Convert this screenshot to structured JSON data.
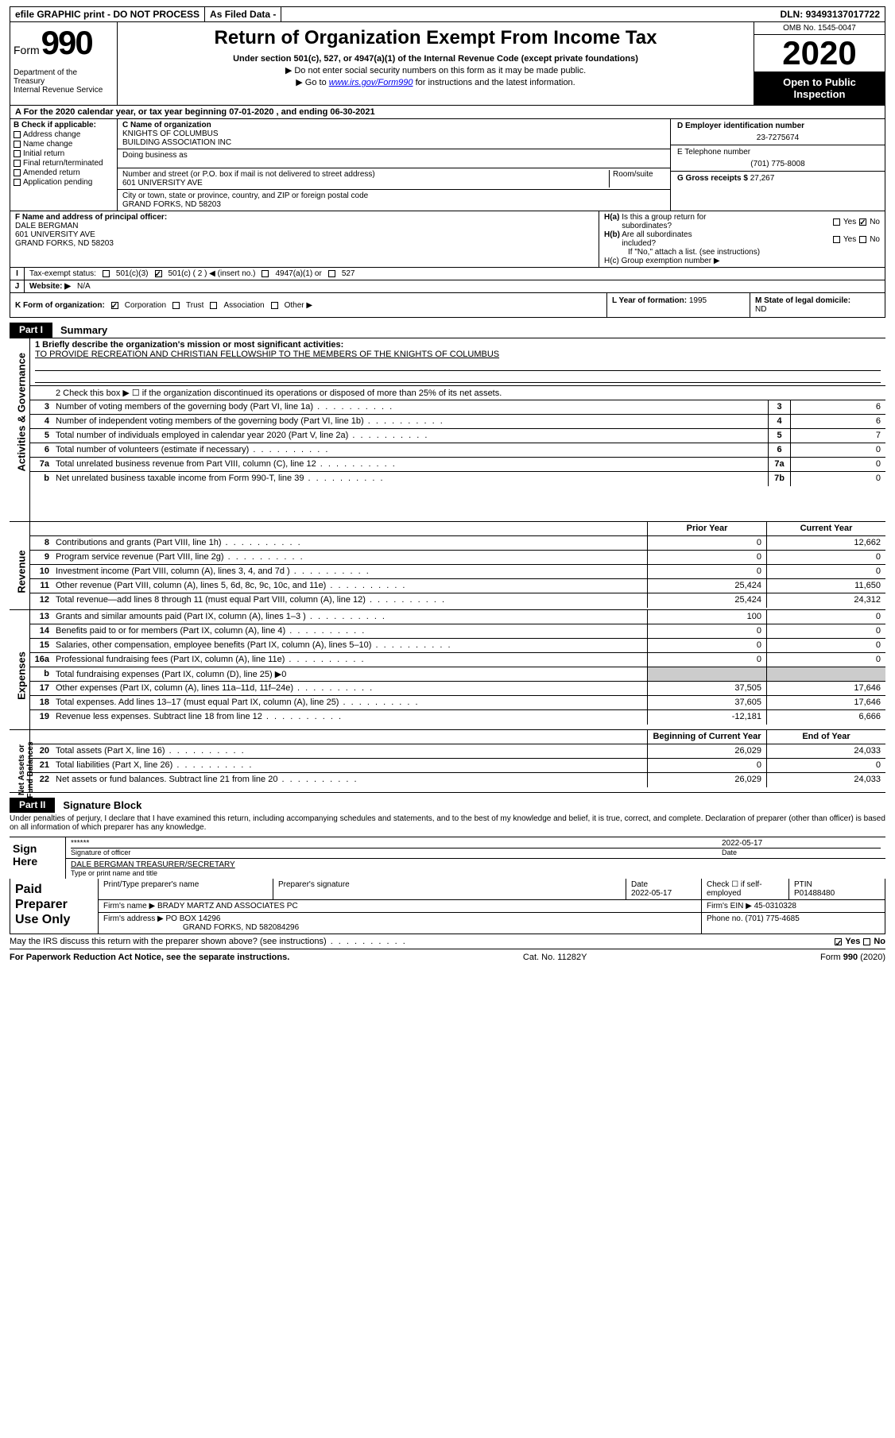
{
  "topbar": {
    "efile": "efile GRAPHIC print - DO NOT PROCESS",
    "asfiled": "As Filed Data -",
    "dln_label": "DLN:",
    "dln": "93493137017722"
  },
  "header": {
    "form_word": "Form",
    "form_no": "990",
    "dept": "Department of the Treasury\nInternal Revenue Service",
    "title": "Return of Organization Exempt From Income Tax",
    "sub1": "Under section 501(c), 527, or 4947(a)(1) of the Internal Revenue Code (except private foundations)",
    "sub2": "▶ Do not enter social security numbers on this form as it may be made public.",
    "sub3_pre": "▶ Go to ",
    "sub3_link": "www.irs.gov/Form990",
    "sub3_post": " for instructions and the latest information.",
    "omb": "OMB No. 1545-0047",
    "year": "2020",
    "open": "Open to Public Inspection"
  },
  "row_a": "A   For the 2020 calendar year, or tax year beginning 07-01-2020   , and ending 06-30-2021",
  "col_b": {
    "hd": "B Check if applicable:",
    "items": [
      "Address change",
      "Name change",
      "Initial return",
      "Final return/terminated",
      "Amended return",
      "Application pending"
    ]
  },
  "col_c": {
    "name_lab": "C Name of organization",
    "name1": "KNIGHTS OF COLUMBUS",
    "name2": "BUILDING ASSOCIATION INC",
    "dba_lab": "Doing business as",
    "addr_lab": "Number and street (or P.O. box if mail is not delivered to street address)",
    "room_lab": "Room/suite",
    "addr": "601 UNIVERSITY AVE",
    "city_lab": "City or town, state or province, country, and ZIP or foreign postal code",
    "city": "GRAND FORKS, ND  58203"
  },
  "col_de": {
    "d_lab": "D Employer identification number",
    "d_val": "23-7275674",
    "e_lab": "E Telephone number",
    "e_val": "(701) 775-8008",
    "g_lab": "G Gross receipts $",
    "g_val": "27,267"
  },
  "f": {
    "lab": "F  Name and address of principal officer:",
    "l1": "DALE BERGMAN",
    "l2": "601 UNIVERSITY AVE",
    "l3": "GRAND FORKS, ND  58203"
  },
  "h": {
    "ha": "H(a)  Is this a group return for subordinates?",
    "hb": "H(b)  Are all subordinates included?",
    "hb_note": "If \"No,\" attach a list. (see instructions)",
    "hc": "H(c)  Group exemption number ▶",
    "yes": "Yes",
    "no": "No"
  },
  "i": {
    "lab": "Tax-exempt status:",
    "o1": "501(c)(3)",
    "o2": "501(c) ( 2 ) ◀ (insert no.)",
    "o3": "4947(a)(1) or",
    "o4": "527"
  },
  "j": {
    "lab": "Website: ▶",
    "val": "N/A"
  },
  "k": {
    "lab": "K Form of organization:",
    "o1": "Corporation",
    "o2": "Trust",
    "o3": "Association",
    "o4": "Other ▶"
  },
  "l": {
    "lab": "L Year of formation:",
    "val": "1995"
  },
  "m": {
    "lab": "M State of legal domicile:",
    "val": "ND"
  },
  "parts": {
    "p1": "Part I",
    "p1t": "Summary",
    "p2": "Part II",
    "p2t": "Signature Block"
  },
  "tabs": {
    "ag": "Activities & Governance",
    "rev": "Revenue",
    "exp": "Expenses",
    "nab": "Net Assets or\nFund Balances"
  },
  "q1": {
    "lab": "1 Briefly describe the organization's mission or most significant activities:",
    "val": "TO PROVIDE RECREATION AND CHRISTIAN FELLOWSHIP TO THE MEMBERS OF THE KNIGHTS OF COLUMBUS"
  },
  "q2": "2   Check this box ▶ ☐  if the organization discontinued its operations or disposed of more than 25% of its net assets.",
  "gov_lines": [
    {
      "n": "3",
      "t": "Number of voting members of the governing body (Part VI, line 1a)",
      "box": "3",
      "v": "6"
    },
    {
      "n": "4",
      "t": "Number of independent voting members of the governing body (Part VI, line 1b)",
      "box": "4",
      "v": "6"
    },
    {
      "n": "5",
      "t": "Total number of individuals employed in calendar year 2020 (Part V, line 2a)",
      "box": "5",
      "v": "7"
    },
    {
      "n": "6",
      "t": "Total number of volunteers (estimate if necessary)",
      "box": "6",
      "v": "0"
    },
    {
      "n": "7a",
      "t": "Total unrelated business revenue from Part VIII, column (C), line 12",
      "box": "7a",
      "v": "0"
    },
    {
      "n": "b",
      "t": "Net unrelated business taxable income from Form 990-T, line 39",
      "box": "7b",
      "v": "0"
    }
  ],
  "col_hdr": {
    "prior": "Prior Year",
    "curr": "Current Year",
    "beg": "Beginning of Current Year",
    "end": "End of Year"
  },
  "rev_lines": [
    {
      "n": "8",
      "t": "Contributions and grants (Part VIII, line 1h)",
      "p": "0",
      "c": "12,662"
    },
    {
      "n": "9",
      "t": "Program service revenue (Part VIII, line 2g)",
      "p": "0",
      "c": "0"
    },
    {
      "n": "10",
      "t": "Investment income (Part VIII, column (A), lines 3, 4, and 7d )",
      "p": "0",
      "c": "0"
    },
    {
      "n": "11",
      "t": "Other revenue (Part VIII, column (A), lines 5, 6d, 8c, 9c, 10c, and 11e)",
      "p": "25,424",
      "c": "11,650"
    },
    {
      "n": "12",
      "t": "Total revenue—add lines 8 through 11 (must equal Part VIII, column (A), line 12)",
      "p": "25,424",
      "c": "24,312"
    }
  ],
  "exp_lines": [
    {
      "n": "13",
      "t": "Grants and similar amounts paid (Part IX, column (A), lines 1–3 )",
      "p": "100",
      "c": "0"
    },
    {
      "n": "14",
      "t": "Benefits paid to or for members (Part IX, column (A), line 4)",
      "p": "0",
      "c": "0"
    },
    {
      "n": "15",
      "t": "Salaries, other compensation, employee benefits (Part IX, column (A), lines 5–10)",
      "p": "0",
      "c": "0"
    },
    {
      "n": "16a",
      "t": "Professional fundraising fees (Part IX, column (A), line 11e)",
      "p": "0",
      "c": "0"
    },
    {
      "n": "b",
      "t": "Total fundraising expenses (Part IX, column (D), line 25) ▶0",
      "p": "",
      "c": "",
      "gray": true
    },
    {
      "n": "17",
      "t": "Other expenses (Part IX, column (A), lines 11a–11d, 11f–24e)",
      "p": "37,505",
      "c": "17,646"
    },
    {
      "n": "18",
      "t": "Total expenses. Add lines 13–17 (must equal Part IX, column (A), line 25)",
      "p": "37,605",
      "c": "17,646"
    },
    {
      "n": "19",
      "t": "Revenue less expenses. Subtract line 18 from line 12",
      "p": "-12,181",
      "c": "6,666"
    }
  ],
  "na_lines": [
    {
      "n": "20",
      "t": "Total assets (Part X, line 16)",
      "p": "26,029",
      "c": "24,033"
    },
    {
      "n": "21",
      "t": "Total liabilities (Part X, line 26)",
      "p": "0",
      "c": "0"
    },
    {
      "n": "22",
      "t": "Net assets or fund balances. Subtract line 21 from line 20",
      "p": "26,029",
      "c": "24,033"
    }
  ],
  "sig_blurb": "Under penalties of perjury, I declare that I have examined this return, including accompanying schedules and statements, and to the best of my knowledge and belief, it is true, correct, and complete. Declaration of preparer (other than officer) is based on all information of which preparer has any knowledge.",
  "sign": {
    "lab": "Sign Here",
    "stars": "******",
    "sig_of": "Signature of officer",
    "date": "2022-05-17",
    "date_lab": "Date",
    "name": "DALE BERGMAN TREASURER/SECRETARY",
    "name_lab": "Type or print name and title"
  },
  "paid": {
    "lab": "Paid Preparer Use Only",
    "c1": "Print/Type preparer's name",
    "c2": "Preparer's signature",
    "c3": "Date",
    "c3v": "2022-05-17",
    "c4": "Check ☐ if self-employed",
    "c5": "PTIN",
    "c5v": "P01488480",
    "firm_lab": "Firm's name   ▶",
    "firm": "BRADY MARTZ AND ASSOCIATES PC",
    "ein_lab": "Firm's EIN ▶",
    "ein": "45-0310328",
    "addr_lab": "Firm's address ▶",
    "addr1": "PO BOX 14296",
    "addr2": "GRAND FORKS, ND  582084296",
    "phone_lab": "Phone no.",
    "phone": "(701) 775-4685"
  },
  "discuss": "May the IRS discuss this return with the preparer shown above? (see instructions)",
  "footer": {
    "left": "For Paperwork Reduction Act Notice, see the separate instructions.",
    "mid": "Cat. No. 11282Y",
    "right": "Form 990 (2020)"
  }
}
